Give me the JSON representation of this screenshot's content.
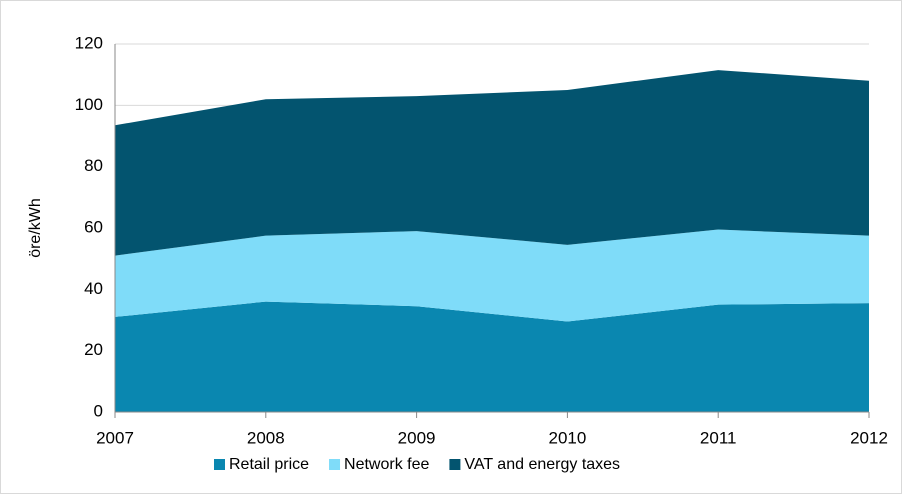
{
  "chart_data": {
    "type": "stacked_area",
    "y_label": "öre/kWh",
    "categories": [
      "2007",
      "2008",
      "2009",
      "2010",
      "2011",
      "2012"
    ],
    "series": [
      {
        "name": "Retail price",
        "color": "#0a87b0",
        "values": [
          31,
          36,
          34.5,
          29.5,
          35,
          35.5
        ]
      },
      {
        "name": "Network fee",
        "color": "#7fdcf9",
        "values": [
          20,
          21.5,
          24.5,
          25,
          24.5,
          22
        ]
      },
      {
        "name": "VAT and energy taxes",
        "color": "#03546f",
        "values": [
          42.5,
          44.5,
          44,
          50.5,
          52,
          50.5
        ]
      }
    ],
    "ylim": [
      0,
      120
    ],
    "yticks": [
      0,
      20,
      40,
      60,
      80,
      100,
      120
    ],
    "grid": true,
    "legend": "bottom"
  }
}
